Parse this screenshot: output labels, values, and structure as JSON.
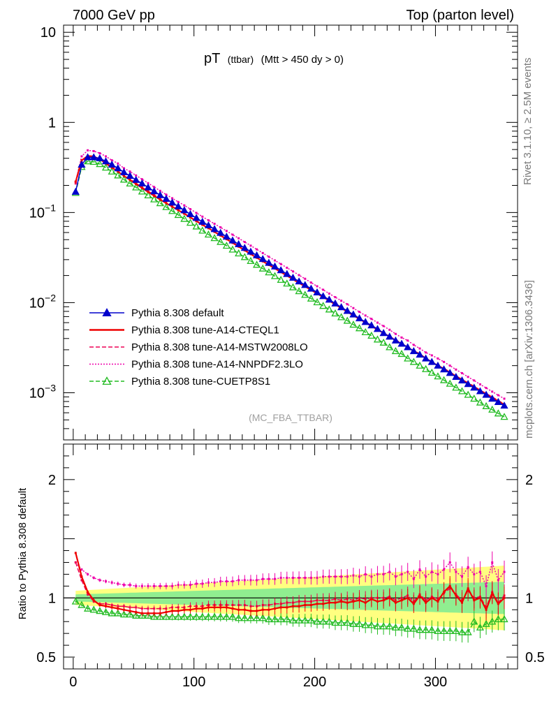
{
  "header": {
    "left": "7000 GeV pp",
    "right": "Top (parton level)"
  },
  "plot_title": {
    "main": "pT",
    "small": "(ttbar)",
    "rest": "(Mtt > 450 dy > 0)"
  },
  "side_labels": {
    "rivet": "Rivet 3.1.10, ≥ 2.5M events",
    "mcplots": "mcplots.cern.ch [arXiv:1306.3436]"
  },
  "analysis_id": "(MC_FBA_TTBAR)",
  "ratio_ylabel": "Ratio to Pythia 8.308 default",
  "legend": [
    {
      "label": "Pythia 8.308 default",
      "color": "#0000cc",
      "style": "solid",
      "marker": "triangle-filled"
    },
    {
      "label": "Pythia 8.308 tune-A14-CTEQL1",
      "color": "#ee0000",
      "style": "solid",
      "marker": "none"
    },
    {
      "label": "Pythia 8.308 tune-A14-MSTW2008LO",
      "color": "#ee0055",
      "style": "dashed",
      "marker": "none"
    },
    {
      "label": "Pythia 8.308 tune-A14-NNPDF2.3LO",
      "color": "#ee00aa",
      "style": "dotted",
      "marker": "none"
    },
    {
      "label": "Pythia 8.308 tune-CUETP8S1",
      "color": "#22bb22",
      "style": "dashed",
      "marker": "triangle-open"
    }
  ],
  "chart_data": [
    {
      "type": "line",
      "log_y": true,
      "xlim": [
        -8,
        368
      ],
      "ylim": [
        0.0003,
        12
      ],
      "x_ticks": [
        "0",
        "100",
        "200",
        "300"
      ],
      "y_ticks": [
        {
          "value": 10,
          "base": "10",
          "exp": ""
        },
        {
          "value": 1,
          "base": "1",
          "exp": ""
        },
        {
          "value": 0.1,
          "base": "10",
          "exp": "−1"
        },
        {
          "value": 0.01,
          "base": "10",
          "exp": "−2"
        },
        {
          "value": 0.001,
          "base": "10",
          "exp": "−3"
        }
      ],
      "x": [
        2,
        7,
        12,
        17,
        22,
        27,
        32,
        37,
        42,
        47,
        52,
        57,
        62,
        67,
        72,
        77,
        82,
        87,
        92,
        97,
        102,
        107,
        112,
        117,
        122,
        127,
        132,
        137,
        142,
        147,
        152,
        157,
        162,
        167,
        172,
        177,
        182,
        187,
        192,
        197,
        202,
        207,
        212,
        217,
        222,
        227,
        232,
        237,
        242,
        247,
        252,
        257,
        262,
        267,
        272,
        277,
        282,
        287,
        292,
        297,
        302,
        307,
        312,
        317,
        322,
        327,
        332,
        337,
        342,
        347,
        352,
        357
      ],
      "series": [
        {
          "name": "Pythia 8.308 default",
          "values": [
            0.17,
            0.34,
            0.41,
            0.41,
            0.4,
            0.37,
            0.34,
            0.31,
            0.28,
            0.255,
            0.23,
            0.21,
            0.19,
            0.172,
            0.156,
            0.142,
            0.129,
            0.117,
            0.106,
            0.096,
            0.087,
            0.079,
            0.072,
            0.0655,
            0.0595,
            0.054,
            0.049,
            0.0445,
            0.0405,
            0.0368,
            0.0335,
            0.0305,
            0.0277,
            0.0252,
            0.0229,
            0.0208,
            0.0189,
            0.0172,
            0.0157,
            0.0143,
            0.013,
            0.0118,
            0.0108,
            0.0098,
            0.0089,
            0.0081,
            0.0074,
            0.0067,
            0.0061,
            0.0056,
            0.0051,
            0.0046,
            0.0042,
            0.0038,
            0.0035,
            0.0032,
            0.0029,
            0.00265,
            0.0024,
            0.0022,
            0.002,
            0.00182,
            0.00166,
            0.0015,
            0.00137,
            0.00125,
            0.00114,
            0.00104,
            0.00095,
            0.00086,
            0.00079,
            0.00072
          ]
        },
        {
          "name": "Pythia 8.308 tune-A14-CTEQL1",
          "values": [
            0.22,
            0.38,
            0.425,
            0.42,
            0.39,
            0.35,
            0.315,
            0.285,
            0.255,
            0.23,
            0.207,
            0.187,
            0.169,
            0.153,
            0.139,
            0.127,
            0.116,
            0.106,
            0.097,
            0.088,
            0.08,
            0.073,
            0.067,
            0.061,
            0.0555,
            0.0505,
            0.046,
            0.0418,
            0.038,
            0.0345,
            0.0315,
            0.0287,
            0.0262,
            0.0239,
            0.0218,
            0.0199,
            0.0181,
            0.0165,
            0.0151,
            0.0138,
            0.0126,
            0.0115,
            0.0105,
            0.0095,
            0.0087,
            0.0079,
            0.0072,
            0.0066,
            0.006,
            0.0055,
            0.005,
            0.0046,
            0.0042,
            0.0038,
            0.0035,
            0.0032,
            0.0029,
            0.0027,
            0.0024,
            0.0022,
            0.002,
            0.00185,
            0.00168,
            0.00153,
            0.0014,
            0.00127,
            0.00116,
            0.00106,
            0.00097,
            0.00088,
            0.00081,
            0.00074
          ]
        },
        {
          "name": "Pythia 8.308 tune-A14-MSTW2008LO",
          "values": [
            0.21,
            0.37,
            0.42,
            0.415,
            0.39,
            0.355,
            0.32,
            0.29,
            0.26,
            0.235,
            0.212,
            0.191,
            0.173,
            0.157,
            0.142,
            0.129,
            0.118,
            0.107,
            0.098,
            0.089,
            0.081,
            0.074,
            0.068,
            0.062,
            0.0562,
            0.0512,
            0.0466,
            0.0424,
            0.0386,
            0.035,
            0.032,
            0.0292,
            0.0266,
            0.0242,
            0.0221,
            0.0201,
            0.0183,
            0.0167,
            0.0153,
            0.014,
            0.0127,
            0.0116,
            0.0106,
            0.0097,
            0.0088,
            0.008,
            0.0073,
            0.0067,
            0.0061,
            0.0056,
            0.0051,
            0.0046,
            0.0042,
            0.0039,
            0.0035,
            0.0032,
            0.0029,
            0.0027,
            0.0024,
            0.0022,
            0.002,
            0.00187,
            0.0017,
            0.00155,
            0.00141,
            0.00129,
            0.00118,
            0.00107,
            0.00098,
            0.0009,
            0.00082,
            0.00075
          ]
        },
        {
          "name": "Pythia 8.308 tune-A14-NNPDF2.3LO",
          "values": [
            0.22,
            0.42,
            0.49,
            0.48,
            0.455,
            0.42,
            0.38,
            0.35,
            0.31,
            0.285,
            0.258,
            0.234,
            0.212,
            0.192,
            0.174,
            0.158,
            0.144,
            0.131,
            0.12,
            0.109,
            0.099,
            0.09,
            0.082,
            0.075,
            0.0685,
            0.0624,
            0.0568,
            0.0518,
            0.0471,
            0.0429,
            0.039,
            0.0355,
            0.0323,
            0.0294,
            0.0268,
            0.0244,
            0.0222,
            0.0202,
            0.0184,
            0.0167,
            0.0152,
            0.0139,
            0.0126,
            0.0115,
            0.0105,
            0.0096,
            0.0087,
            0.0079,
            0.0072,
            0.0066,
            0.006,
            0.0055,
            0.005,
            0.0045,
            0.0041,
            0.0038,
            0.0034,
            0.0031,
            0.0028,
            0.0026,
            0.0024,
            0.0022,
            0.002,
            0.00181,
            0.00165,
            0.0015,
            0.00137,
            0.00124,
            0.00113,
            0.00103,
            0.00094,
            0.00086
          ]
        },
        {
          "name": "Pythia 8.308 tune-CUETP8S1",
          "values": [
            0.165,
            0.32,
            0.37,
            0.365,
            0.345,
            0.315,
            0.285,
            0.258,
            0.232,
            0.21,
            0.19,
            0.171,
            0.155,
            0.14,
            0.127,
            0.115,
            0.104,
            0.094,
            0.085,
            0.077,
            0.07,
            0.063,
            0.057,
            0.052,
            0.0472,
            0.0428,
            0.0388,
            0.0352,
            0.032,
            0.029,
            0.0263,
            0.0239,
            0.0217,
            0.0197,
            0.0179,
            0.0163,
            0.0148,
            0.0134,
            0.0122,
            0.0111,
            0.0101,
            0.0092,
            0.0084,
            0.0076,
            0.0069,
            0.0063,
            0.0057,
            0.0052,
            0.0047,
            0.0043,
            0.0039,
            0.0036,
            0.0032,
            0.0029,
            0.0027,
            0.0024,
            0.0022,
            0.002,
            0.00183,
            0.00167,
            0.00152,
            0.00138,
            0.00126,
            0.00114,
            0.00104,
            0.00095,
            0.00086,
            0.00078,
            0.00071,
            0.00065,
            0.00059,
            0.00054
          ]
        }
      ]
    },
    {
      "type": "line",
      "ylabel": "Ratio to Pythia 8.308 default",
      "xlim": [
        -8,
        368
      ],
      "ylim": [
        0.4,
        2.3
      ],
      "y_ticks": [
        "2",
        "1",
        "0.5"
      ],
      "x": [
        2,
        7,
        12,
        17,
        22,
        27,
        32,
        37,
        42,
        47,
        52,
        57,
        62,
        67,
        72,
        77,
        82,
        87,
        92,
        97,
        102,
        107,
        112,
        117,
        122,
        127,
        132,
        137,
        142,
        147,
        152,
        157,
        162,
        167,
        172,
        177,
        182,
        187,
        192,
        197,
        202,
        207,
        212,
        217,
        222,
        227,
        232,
        237,
        242,
        247,
        252,
        257,
        262,
        267,
        272,
        277,
        282,
        287,
        292,
        297,
        302,
        307,
        312,
        317,
        322,
        327,
        332,
        337,
        342,
        347,
        352,
        357
      ],
      "band": {
        "inner": 0.03,
        "outer": 0.06,
        "inner_color": "#90ee90",
        "outer_color": "#ffff80"
      },
      "series": [
        {
          "name": "Pythia 8.308 tune-A14-CTEQL1",
          "values": [
            1.38,
            1.18,
            1.05,
            0.98,
            0.94,
            0.93,
            0.92,
            0.91,
            0.9,
            0.89,
            0.88,
            0.87,
            0.87,
            0.87,
            0.87,
            0.88,
            0.89,
            0.89,
            0.9,
            0.9,
            0.91,
            0.91,
            0.92,
            0.92,
            0.92,
            0.92,
            0.91,
            0.9,
            0.9,
            0.89,
            0.89,
            0.9,
            0.9,
            0.91,
            0.92,
            0.92,
            0.93,
            0.93,
            0.94,
            0.94,
            0.95,
            0.95,
            0.96,
            0.96,
            0.97,
            0.96,
            0.97,
            0.98,
            0.96,
            0.99,
            0.97,
            0.98,
            1.0,
            0.96,
            0.98,
            1.0,
            0.95,
            1.02,
            0.96,
            1.0,
            0.97,
            1.05,
            1.1,
            1.02,
            0.96,
            1.08,
            0.98,
            1.0,
            0.9,
            1.04,
            0.95,
            1.0
          ]
        },
        {
          "name": "Pythia 8.308 tune-A14-MSTW2008LO",
          "values": [
            1.3,
            1.15,
            1.03,
            0.97,
            0.95,
            0.95,
            0.94,
            0.93,
            0.93,
            0.92,
            0.92,
            0.91,
            0.91,
            0.91,
            0.91,
            0.91,
            0.92,
            0.92,
            0.92,
            0.93,
            0.93,
            0.93,
            0.94,
            0.94,
            0.94,
            0.94,
            0.94,
            0.94,
            0.94,
            0.93,
            0.93,
            0.94,
            0.94,
            0.95,
            0.95,
            0.96,
            0.96,
            0.97,
            0.97,
            0.97,
            0.98,
            0.98,
            0.98,
            0.99,
            0.98,
            0.99,
            0.98,
            1.0,
            0.99,
            1.0,
            1.0,
            1.0,
            1.01,
            0.98,
            1.0,
            1.02,
            0.97,
            1.03,
            0.98,
            1.01,
            0.99,
            1.04,
            1.08,
            1.03,
            0.98,
            1.06,
            1.0,
            1.01,
            0.92,
            1.05,
            0.96,
            1.02
          ]
        },
        {
          "name": "Pythia 8.308 tune-A14-NNPDF2.3LO",
          "values": [
            1.3,
            1.24,
            1.2,
            1.17,
            1.15,
            1.14,
            1.13,
            1.12,
            1.11,
            1.11,
            1.1,
            1.1,
            1.1,
            1.1,
            1.1,
            1.1,
            1.1,
            1.11,
            1.11,
            1.11,
            1.12,
            1.12,
            1.13,
            1.13,
            1.14,
            1.14,
            1.14,
            1.15,
            1.15,
            1.15,
            1.15,
            1.16,
            1.16,
            1.16,
            1.17,
            1.17,
            1.17,
            1.17,
            1.17,
            1.17,
            1.17,
            1.18,
            1.18,
            1.18,
            1.18,
            1.18,
            1.19,
            1.18,
            1.2,
            1.18,
            1.2,
            1.2,
            1.22,
            1.18,
            1.2,
            1.22,
            1.16,
            1.24,
            1.18,
            1.22,
            1.2,
            1.24,
            1.3,
            1.22,
            1.18,
            1.26,
            1.2,
            1.22,
            1.1,
            1.3,
            1.15,
            1.22
          ]
        },
        {
          "name": "Pythia 8.308 tune-CUETP8S1",
          "values": [
            0.97,
            0.94,
            0.91,
            0.9,
            0.89,
            0.88,
            0.87,
            0.87,
            0.86,
            0.86,
            0.85,
            0.85,
            0.85,
            0.84,
            0.84,
            0.84,
            0.84,
            0.84,
            0.84,
            0.84,
            0.84,
            0.84,
            0.84,
            0.84,
            0.84,
            0.84,
            0.84,
            0.83,
            0.83,
            0.83,
            0.83,
            0.83,
            0.82,
            0.82,
            0.82,
            0.82,
            0.81,
            0.81,
            0.81,
            0.81,
            0.8,
            0.8,
            0.8,
            0.79,
            0.79,
            0.79,
            0.78,
            0.78,
            0.77,
            0.77,
            0.76,
            0.76,
            0.76,
            0.75,
            0.75,
            0.74,
            0.74,
            0.73,
            0.73,
            0.73,
            0.72,
            0.72,
            0.72,
            0.72,
            0.71,
            0.71,
            0.8,
            0.75,
            0.78,
            0.8,
            0.82,
            0.82
          ]
        }
      ]
    }
  ]
}
